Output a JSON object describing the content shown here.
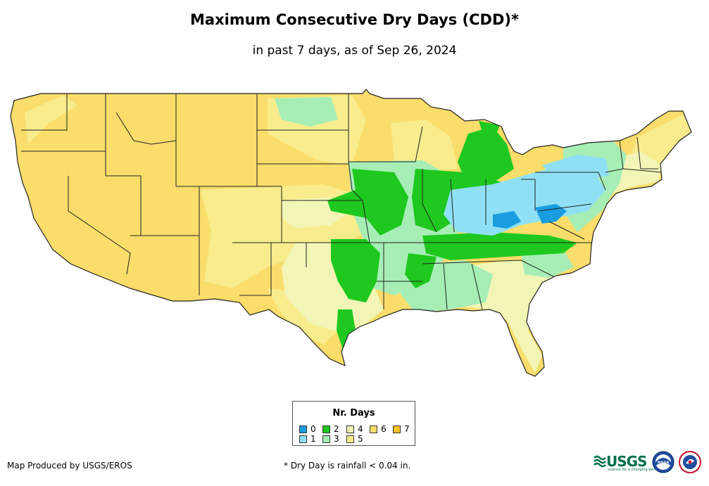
{
  "title": "Maximum Consecutive Dry Days (CDD)*",
  "subtitle": "in past 7 days, as of Sep 26, 2024",
  "legend": {
    "title": "Nr. Days",
    "items": [
      {
        "label": "0",
        "color": "#1a9de0"
      },
      {
        "label": "1",
        "color": "#8fe0f5"
      },
      {
        "label": "2",
        "color": "#1ec81e"
      },
      {
        "label": "3",
        "color": "#a6eeb6"
      },
      {
        "label": "4",
        "color": "#f2f5b5"
      },
      {
        "label": "5",
        "color": "#f8ec8c"
      },
      {
        "label": "6",
        "color": "#fadd6a"
      },
      {
        "label": "7",
        "color": "#f6c22a"
      }
    ]
  },
  "credit": "Map Produced by USGS/EROS",
  "footnote": "* Dry Day is rainfall < 0.04 in.",
  "logos": {
    "usgs": "USGS",
    "usgs_tagline": "science for a changing world",
    "noaa": "noaa"
  },
  "icons": [
    "usgs-logo-icon",
    "noaa-seal-icon",
    "nws-seal-icon"
  ]
}
